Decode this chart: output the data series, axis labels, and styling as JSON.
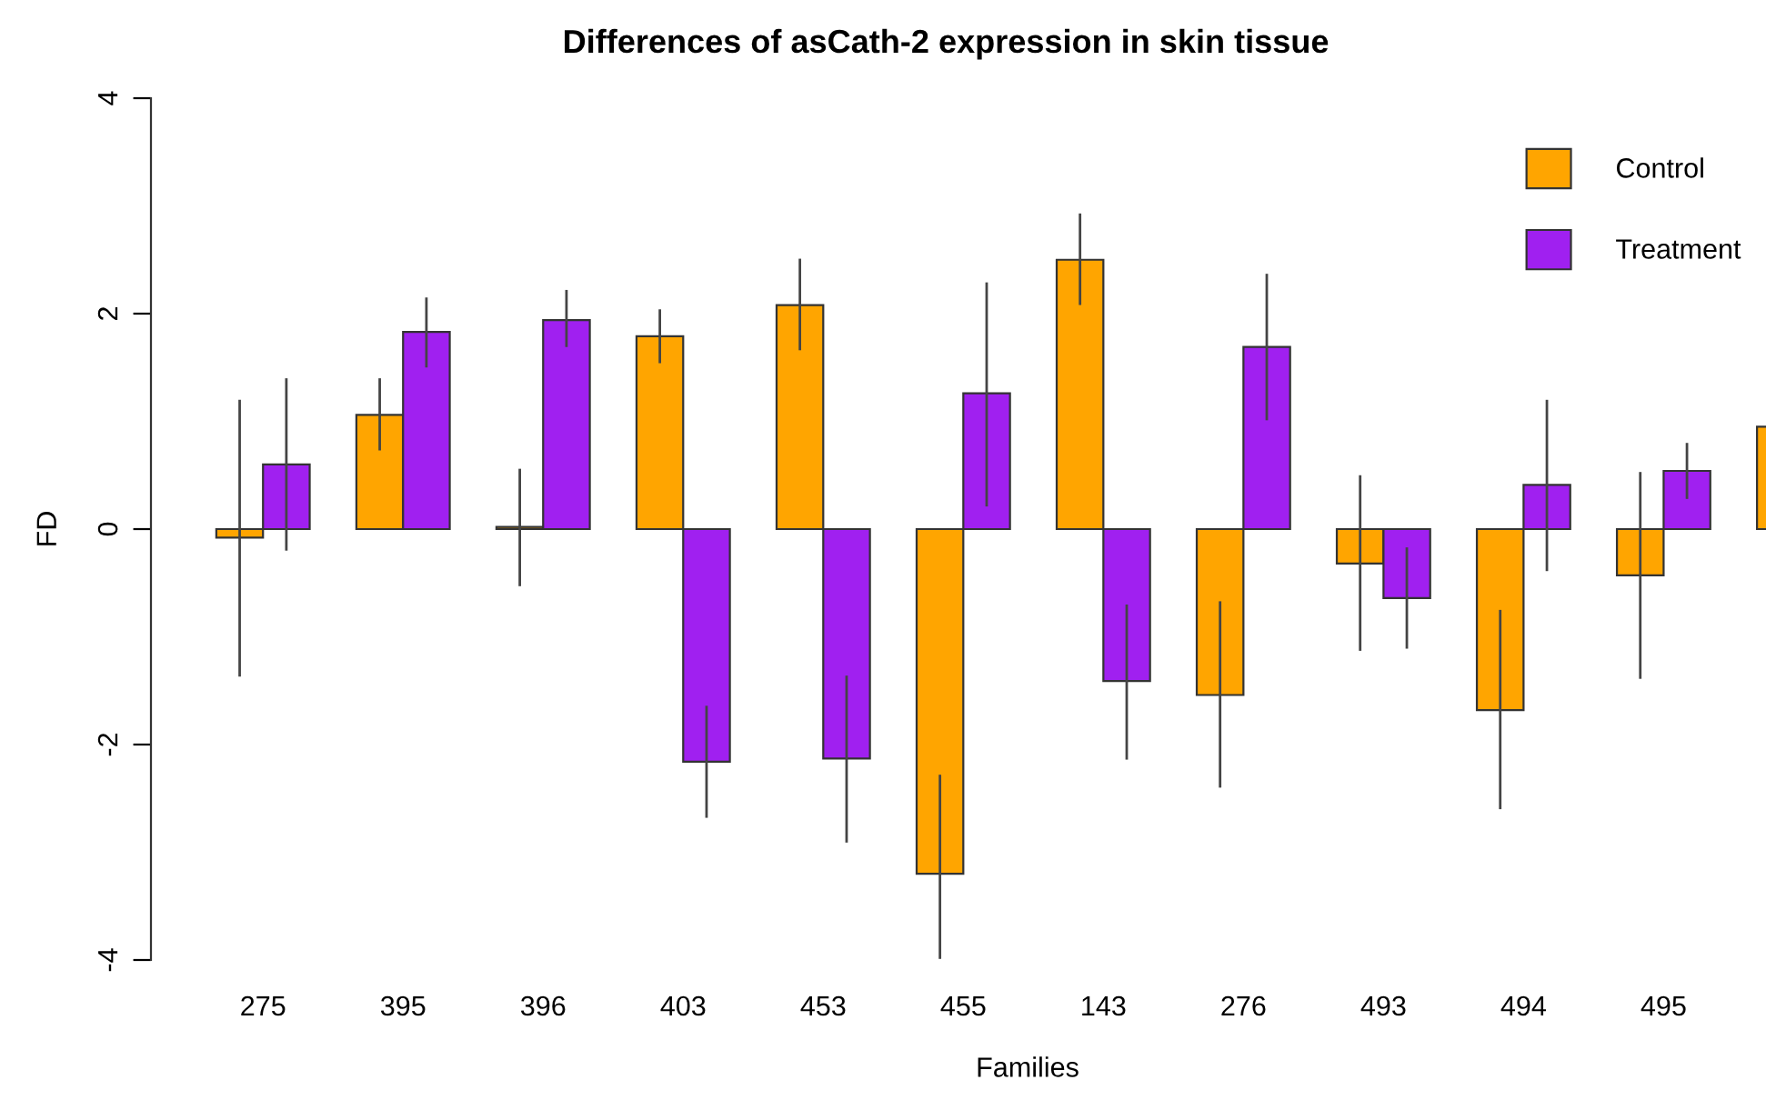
{
  "chart_data": {
    "type": "bar",
    "title": "Differences of asCath-2 expression in skin tissue",
    "xlabel": "Families",
    "ylabel": "FD",
    "categories": [
      "275",
      "395",
      "396",
      "403",
      "453",
      "455",
      "143",
      "276",
      "493",
      "494",
      "495",
      null
    ],
    "series": [
      {
        "name": "Control",
        "color": "#ffa500",
        "values": [
          -0.08,
          1.06,
          0.02,
          1.79,
          2.08,
          -3.2,
          2.5,
          -1.54,
          -0.32,
          -1.68,
          -0.43,
          0.95
        ],
        "errors": [
          [
            -1.37,
            1.2
          ],
          [
            0.73,
            1.4
          ],
          [
            -0.53,
            0.56
          ],
          [
            1.54,
            2.04
          ],
          [
            1.66,
            2.51
          ],
          [
            -3.99,
            -2.28
          ],
          [
            2.08,
            2.93
          ],
          [
            -2.4,
            -0.67
          ],
          [
            -1.13,
            0.5
          ],
          [
            -2.6,
            -0.75
          ],
          [
            -1.39,
            0.53
          ],
          null
        ]
      },
      {
        "name": "Treatment",
        "color": "#a020f0",
        "values": [
          0.6,
          1.83,
          1.94,
          -2.16,
          -2.13,
          1.26,
          -1.41,
          1.69,
          -0.64,
          0.41,
          0.54,
          null
        ],
        "errors": [
          [
            -0.2,
            1.4
          ],
          [
            1.5,
            2.15
          ],
          [
            1.69,
            2.22
          ],
          [
            -2.68,
            -1.64
          ],
          [
            -2.91,
            -1.36
          ],
          [
            0.21,
            2.29
          ],
          [
            -2.14,
            -0.7
          ],
          [
            1.01,
            2.37
          ],
          [
            -1.11,
            -0.17
          ],
          [
            -0.39,
            1.2
          ],
          [
            0.28,
            0.8
          ],
          null
        ]
      }
    ],
    "ylim": [
      -4,
      4
    ],
    "yticks": [
      -4,
      -2,
      0,
      2,
      4
    ],
    "grid": false,
    "legend": "top right"
  }
}
